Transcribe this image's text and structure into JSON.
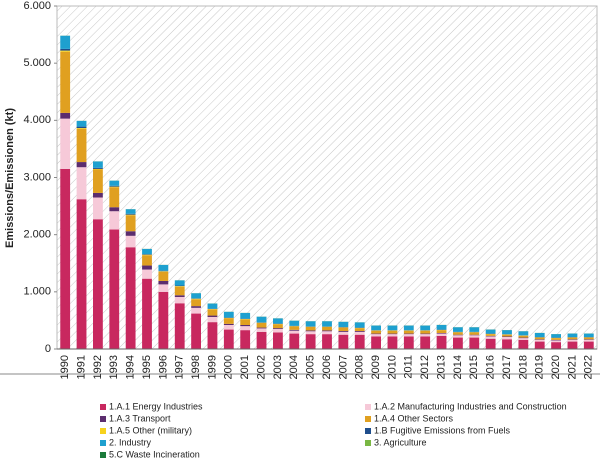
{
  "chart_data": {
    "type": "stacked_bar",
    "y_label": "Emissions/Emissionen (kt)",
    "categories": [
      "1990",
      "1991",
      "1992",
      "1993",
      "1994",
      "1995",
      "1996",
      "1997",
      "1998",
      "1999",
      "2000",
      "2001",
      "2002",
      "2003",
      "2004",
      "2005",
      "2006",
      "2007",
      "2008",
      "2009",
      "2010",
      "2011",
      "2012",
      "2013",
      "2014",
      "2015",
      "2016",
      "2017",
      "2018",
      "2019",
      "2020",
      "2021",
      "2022"
    ],
    "ylim": [
      0,
      6000
    ],
    "yticks": [
      0,
      {
        "value": 1000,
        "label": "1.000"
      },
      {
        "value": 2000,
        "label": "2.000"
      },
      {
        "value": 3000,
        "label": "3.000"
      },
      {
        "value": 4000,
        "label": "4.000"
      },
      {
        "value": 5000,
        "label": "5.000"
      },
      {
        "value": 6000,
        "label": "6.000"
      }
    ],
    "series": [
      {
        "name": "1.A.1 Energy Industries",
        "color": "#c8285f",
        "values": [
          3150,
          2620,
          2270,
          2090,
          1780,
          1230,
          1000,
          800,
          620,
          470,
          340,
          330,
          300,
          290,
          270,
          260,
          260,
          250,
          250,
          220,
          220,
          220,
          220,
          230,
          200,
          200,
          180,
          170,
          160,
          130,
          120,
          130,
          130
        ]
      },
      {
        "name": "1.A.2 Manufacturing Industries and Construction",
        "color": "#f6c9d8",
        "values": [
          880,
          560,
          380,
          320,
          200,
          160,
          130,
          110,
          100,
          90,
          80,
          70,
          60,
          60,
          50,
          50,
          50,
          50,
          50,
          40,
          40,
          40,
          40,
          40,
          40,
          40,
          40,
          40,
          30,
          30,
          30,
          30,
          30
        ]
      },
      {
        "name": "1.A.3 Transport",
        "color": "#5c2d6e",
        "values": [
          100,
          90,
          80,
          70,
          80,
          70,
          60,
          30,
          30,
          25,
          20,
          20,
          15,
          15,
          15,
          15,
          15,
          15,
          15,
          10,
          10,
          10,
          10,
          10,
          10,
          10,
          10,
          10,
          10,
          10,
          10,
          10,
          10
        ]
      },
      {
        "name": "1.A.4 Other Sectors",
        "color": "#e0a020",
        "values": [
          1070,
          580,
          410,
          350,
          280,
          180,
          160,
          150,
          120,
          110,
          100,
          100,
          80,
          70,
          60,
          60,
          60,
          60,
          50,
          50,
          50,
          50,
          50,
          50,
          40,
          40,
          30,
          30,
          30,
          30,
          30,
          30,
          30
        ]
      },
      {
        "name": "1.A.5 Other (military)",
        "color": "#f7d21c",
        "values": [
          20,
          15,
          10,
          10,
          10,
          10,
          10,
          10,
          10,
          5,
          5,
          5,
          5,
          5,
          5,
          5,
          5,
          5,
          5,
          5,
          5,
          5,
          5,
          5,
          5,
          5,
          5,
          5,
          5,
          5,
          5,
          5,
          5
        ]
      },
      {
        "name": "1.B Fugitive Emissions from Fuels",
        "color": "#1f4e8c",
        "values": [
          30,
          25,
          20,
          15,
          15,
          10,
          10,
          10,
          5,
          5,
          5,
          5,
          5,
          5,
          5,
          5,
          5,
          5,
          5,
          5,
          5,
          5,
          5,
          5,
          5,
          5,
          5,
          5,
          5,
          5,
          5,
          5,
          5
        ]
      },
      {
        "name": "2. Industry",
        "color": "#1ea0cf",
        "values": [
          230,
          100,
          110,
          90,
          80,
          90,
          100,
          90,
          90,
          90,
          100,
          100,
          100,
          90,
          90,
          90,
          90,
          90,
          90,
          80,
          80,
          80,
          80,
          80,
          80,
          80,
          70,
          70,
          70,
          70,
          60,
          60,
          60
        ]
      },
      {
        "name": "3. Agriculture",
        "color": "#79b743",
        "values": [
          1,
          1,
          1,
          1,
          1,
          1,
          1,
          1,
          1,
          1,
          1,
          1,
          1,
          1,
          1,
          1,
          1,
          1,
          1,
          1,
          1,
          1,
          1,
          1,
          1,
          1,
          1,
          1,
          1,
          1,
          1,
          1,
          1
        ]
      },
      {
        "name": "5.C Waste Incineration",
        "color": "#1a7a3a",
        "values": [
          1,
          1,
          1,
          1,
          1,
          1,
          1,
          1,
          1,
          1,
          1,
          1,
          1,
          1,
          1,
          1,
          1,
          1,
          1,
          1,
          1,
          1,
          1,
          1,
          1,
          1,
          1,
          1,
          1,
          1,
          1,
          1,
          1
        ]
      }
    ]
  }
}
